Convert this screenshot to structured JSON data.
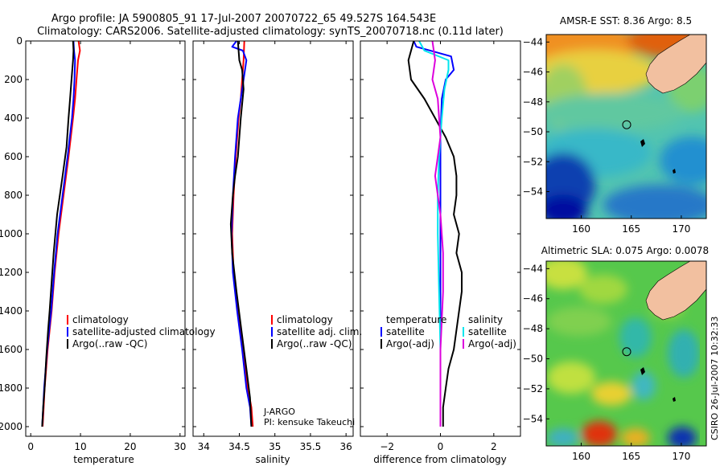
{
  "title": {
    "line1": "Argo profile: JA 5900805_91 17-Jul-2007 20070722_65 49.527S 164.543E",
    "line2": "Climatology: CARS2006. Satellite-adjusted climatology: synTS_20070718.nc (0.11d later)"
  },
  "footer": {
    "program": "J-ARGO",
    "pi": "PI: kensuke Takeuchi",
    "stamp": "CSIRO 26-Jul-2007 10:32:33"
  },
  "colors": {
    "climatology": "#ff0000",
    "satellite": "#0000ff",
    "argo": "#000000",
    "satellite_diff": "#00e5ee",
    "argo_sal_diff": "#dd00dd",
    "land": "#f2c0a0"
  },
  "chart_data": [
    {
      "type": "line",
      "id": "temperature",
      "xlabel": "temperature",
      "xlim": [
        -1,
        31
      ],
      "ylim": [
        2050,
        0
      ],
      "xticks": [
        0,
        10,
        20,
        30
      ],
      "yticks": [
        0,
        200,
        400,
        600,
        800,
        1000,
        1200,
        1400,
        1600,
        1800,
        2000
      ],
      "legend": {
        "position": "lower-right",
        "entries": [
          {
            "label": "climatology",
            "color": "#ff0000"
          },
          {
            "label": "satellite-adjusted climatology",
            "color": "#0000ff"
          },
          {
            "label": "Argo(..raw -QC)",
            "color": "#000000"
          }
        ]
      },
      "series": [
        {
          "name": "climatology",
          "color": "#ff0000",
          "x": [
            9.6,
            9.9,
            9.5,
            9.2,
            8.9,
            8.5,
            7.6,
            6.6,
            5.6,
            4.8,
            4.2,
            3.8,
            3.4,
            3.1,
            2.8,
            2.6,
            2.4
          ],
          "y": [
            0,
            50,
            100,
            200,
            300,
            400,
            600,
            800,
            1000,
            1200,
            1400,
            1500,
            1600,
            1700,
            1800,
            1900,
            2000
          ]
        },
        {
          "name": "satellite-adjusted climatology",
          "color": "#0000ff",
          "x": [
            8.6,
            8.7,
            8.9,
            8.8,
            8.6,
            8.3,
            7.4,
            6.4,
            5.4,
            4.7,
            4.1,
            3.7,
            3.3,
            3.0,
            2.7,
            2.5,
            2.3
          ],
          "y": [
            0,
            50,
            100,
            200,
            300,
            400,
            600,
            800,
            1000,
            1200,
            1400,
            1500,
            1600,
            1700,
            1800,
            1900,
            2000
          ]
        },
        {
          "name": "Argo(..raw -QC)",
          "color": "#000000",
          "x": [
            8.5,
            8.6,
            8.5,
            8.2,
            7.9,
            7.6,
            7.2,
            6.4,
            5.3,
            4.6,
            4.2,
            3.8,
            3.5,
            3.1,
            2.8,
            2.5,
            2.3
          ],
          "y": [
            0,
            50,
            100,
            200,
            300,
            400,
            550,
            700,
            900,
            1100,
            1250,
            1400,
            1500,
            1650,
            1800,
            1900,
            2000
          ]
        }
      ]
    },
    {
      "type": "line",
      "id": "salinity",
      "xlabel": "salinity",
      "xlim": [
        33.85,
        36.1
      ],
      "ylim": [
        2050,
        0
      ],
      "xticks": [
        34,
        34.5,
        35,
        35.5,
        36
      ],
      "legend": {
        "position": "lower-right",
        "entries": [
          {
            "label": "climatology",
            "color": "#ff0000"
          },
          {
            "label": "satellite adj. clim.",
            "color": "#0000ff"
          },
          {
            "label": "Argo(..raw -QC)",
            "color": "#000000"
          }
        ]
      },
      "series": [
        {
          "name": "climatology",
          "color": "#ff0000",
          "x": [
            34.57,
            34.56,
            34.54,
            34.52,
            34.49,
            34.45,
            34.42,
            34.4,
            34.42,
            34.48,
            34.55,
            34.62,
            34.67,
            34.69
          ],
          "y": [
            0,
            100,
            200,
            300,
            400,
            600,
            800,
            1000,
            1200,
            1400,
            1600,
            1800,
            1900,
            2000
          ]
        },
        {
          "name": "satellite adj. clim.",
          "color": "#0000ff",
          "x": [
            34.46,
            34.4,
            34.55,
            34.6,
            34.56,
            34.52,
            34.48,
            34.44,
            34.41,
            34.39,
            34.41,
            34.47,
            34.54,
            34.6,
            34.65,
            34.67
          ],
          "y": [
            0,
            30,
            50,
            100,
            200,
            300,
            400,
            600,
            800,
            1000,
            1200,
            1400,
            1600,
            1800,
            1900,
            2000
          ]
        },
        {
          "name": "Argo(..raw -QC)",
          "color": "#000000",
          "x": [
            34.48,
            34.5,
            34.54,
            34.56,
            34.52,
            34.48,
            34.44,
            34.41,
            34.38,
            34.4,
            34.46,
            34.53,
            34.6,
            34.65,
            34.67
          ],
          "y": [
            0,
            100,
            150,
            250,
            400,
            600,
            700,
            800,
            950,
            1100,
            1300,
            1500,
            1700,
            1850,
            2000
          ]
        }
      ]
    },
    {
      "type": "line",
      "id": "difference",
      "xlabel": "difference from climatology",
      "xlim": [
        -3,
        3
      ],
      "ylim": [
        2050,
        0
      ],
      "xticks": [
        -2,
        0,
        2
      ],
      "legend": {
        "position": "lower",
        "groups": [
          {
            "title": "temperature",
            "entries": [
              {
                "label": "satellite",
                "color": "#0000ff"
              },
              {
                "label": "Argo(-adj)",
                "color": "#000000"
              }
            ]
          },
          {
            "title": "salinity",
            "entries": [
              {
                "label": "satellite",
                "color": "#00e5ee"
              },
              {
                "label": "Argo(-adj)",
                "color": "#dd00dd"
              }
            ]
          }
        ]
      },
      "series": [
        {
          "name": "temperature satellite",
          "color": "#0000ff",
          "x": [
            -1.0,
            -0.9,
            0.4,
            0.5,
            0.2,
            0.05,
            0.0,
            0.0
          ],
          "y": [
            0,
            30,
            80,
            150,
            200,
            300,
            500,
            2000
          ]
        },
        {
          "name": "temperature Argo(-adj)",
          "color": "#000000",
          "x": [
            -1.0,
            -1.2,
            -1.1,
            -0.6,
            -0.2,
            0.2,
            0.5,
            0.6,
            0.6,
            0.5,
            0.7,
            0.6,
            0.8,
            0.8,
            0.7,
            0.6,
            0.5,
            0.3,
            0.2,
            0.1,
            0.1
          ],
          "y": [
            0,
            100,
            200,
            300,
            400,
            500,
            600,
            700,
            800,
            900,
            1000,
            1100,
            1200,
            1300,
            1400,
            1500,
            1600,
            1700,
            1800,
            1900,
            2000
          ]
        },
        {
          "name": "salinity satellite",
          "color": "#00e5ee",
          "x": [
            -0.8,
            -0.6,
            0.3,
            0.3,
            0.15,
            0.05,
            -0.05,
            -0.1,
            -0.1,
            -0.05,
            0.0,
            0.0
          ],
          "y": [
            0,
            50,
            100,
            150,
            250,
            400,
            600,
            800,
            1000,
            1300,
            1600,
            2000
          ]
        },
        {
          "name": "salinity Argo(-adj)",
          "color": "#dd00dd",
          "x": [
            -0.3,
            -0.2,
            -0.3,
            -0.1,
            0.0,
            -0.2,
            0.0,
            0.1,
            0.1,
            0.0,
            0.0
          ],
          "y": [
            0,
            100,
            200,
            300,
            500,
            700,
            900,
            1100,
            1300,
            1600,
            2000
          ]
        }
      ]
    },
    {
      "type": "heatmap",
      "id": "sst-map",
      "title": "AMSR-E SST: 8.36 Argo: 8.5",
      "xlim": [
        156.5,
        172.5
      ],
      "ylim": [
        -55.8,
        -43.5
      ],
      "xticks": [
        160,
        165,
        170
      ],
      "yticks": [
        -44,
        -46,
        -48,
        -50,
        -52,
        -54
      ],
      "marker": {
        "lon": 164.543,
        "lat": -49.527
      }
    },
    {
      "type": "heatmap",
      "id": "sla-map",
      "title": "Altimetric SLA: 0.075 Argo: 0.0078",
      "xlim": [
        156.5,
        172.5
      ],
      "ylim": [
        -55.8,
        -43.5
      ],
      "xticks": [
        160,
        165,
        170
      ],
      "yticks": [
        -44,
        -46,
        -48,
        -50,
        -52,
        -54
      ],
      "marker": {
        "lon": 164.543,
        "lat": -49.527
      }
    }
  ]
}
